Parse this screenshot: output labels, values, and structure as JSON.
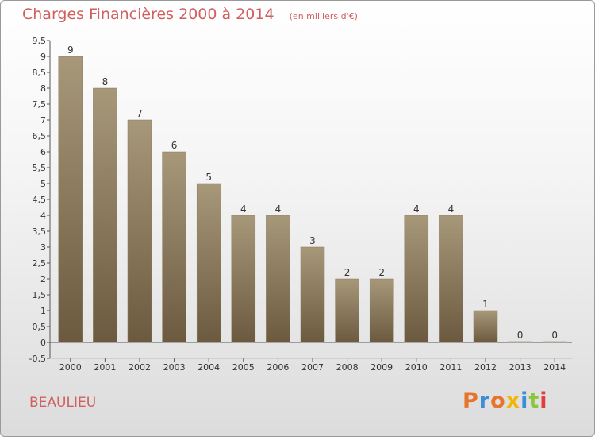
{
  "chart_data": {
    "type": "bar",
    "title": "Charges Financières 2000 à 2014",
    "subtitle": "(en milliers d'€)",
    "categories": [
      "2000",
      "2001",
      "2002",
      "2003",
      "2004",
      "2005",
      "2006",
      "2007",
      "2008",
      "2009",
      "2010",
      "2011",
      "2012",
      "2013",
      "2014"
    ],
    "values": [
      9,
      8,
      7,
      6,
      5,
      4,
      4,
      3,
      2,
      2,
      4,
      4,
      1,
      0,
      0
    ],
    "ylim": [
      -0.5,
      9.5
    ],
    "yticks": [
      "-0,5",
      "0",
      "0,5",
      "1",
      "1,5",
      "2",
      "2,5",
      "3",
      "3,5",
      "4",
      "4,5",
      "5",
      "5,5",
      "6",
      "6,5",
      "7",
      "7,5",
      "8",
      "8,5",
      "9",
      "9,5"
    ],
    "grid": false,
    "bar_color_top": "#a8987a",
    "bar_color_bottom": "#6b5a3f"
  },
  "footer": {
    "city": "BEAULIEU",
    "logo": "Proxiti"
  },
  "colors": {
    "title": "#d0605f",
    "logo_letters": [
      "#e8742a",
      "#3a8fd6",
      "#e8742a",
      "#f2b705",
      "#3a8fd6",
      "#8cc63f",
      "#e23c3c"
    ]
  }
}
